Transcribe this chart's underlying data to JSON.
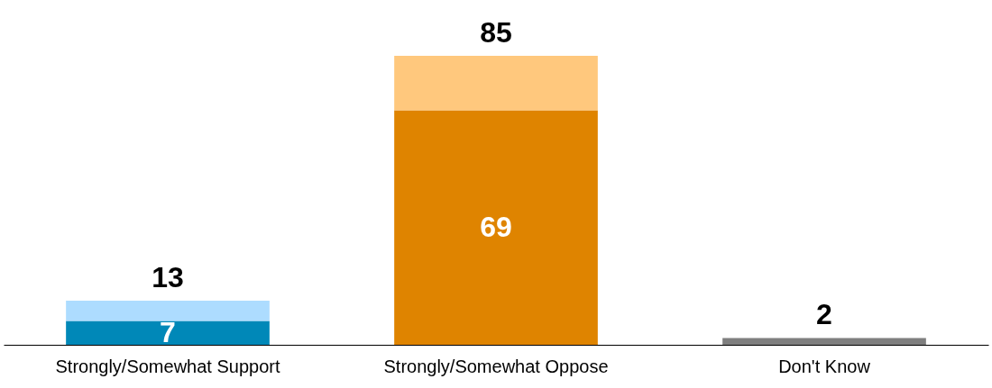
{
  "chart_data": {
    "type": "bar",
    "stacked": true,
    "categories": [
      "Strongly/Somewhat Support",
      "Strongly/Somewhat Oppose",
      "Don't Know"
    ],
    "series": [
      {
        "colors": [
          "#0088b8",
          "#df8400",
          "#7f7f7f"
        ],
        "values": [
          7,
          69,
          2
        ],
        "value_labels": [
          "7",
          "69",
          null
        ]
      },
      {
        "colors": [
          "#addcff",
          "#ffc87d",
          null
        ],
        "values": [
          6,
          16,
          null
        ]
      }
    ],
    "totals": [
      "13",
      "85",
      "2"
    ],
    "grid": false
  }
}
